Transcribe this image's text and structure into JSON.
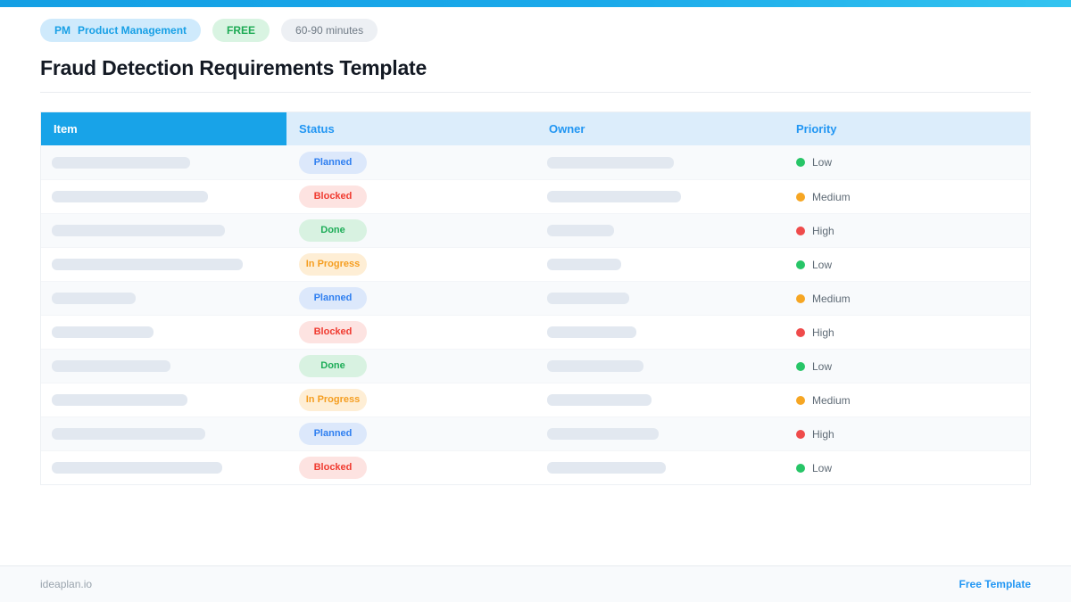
{
  "topbar": {
    "gradient_from": "#149fe4",
    "gradient_to": "#33c4f0"
  },
  "badges": {
    "pm": {
      "prefix": "PM",
      "label": "Product Management",
      "bg": "#cfeafc",
      "color": "#18a0e6"
    },
    "free": {
      "label": "FREE",
      "bg": "#d9f4e2",
      "color": "#1caa53"
    },
    "duration": {
      "label": "60-90 minutes",
      "bg": "#edf0f4",
      "color": "#6f7a85"
    }
  },
  "title": "Fraud Detection Requirements Template",
  "table": {
    "columns": [
      "Item",
      "Status",
      "Owner",
      "Priority"
    ],
    "header_colors": {
      "item_bg": "#18a3e8",
      "item_text": "#ffffff",
      "other_bg": "#dcedfb",
      "other_text": "#2196f3"
    },
    "statuses": {
      "Planned": {
        "bg": "#dce8fb",
        "color": "#2f7ff0"
      },
      "Blocked": {
        "bg": "#fde3e1",
        "color": "#f03b30"
      },
      "Done": {
        "bg": "#d8f2e1",
        "color": "#1ead58"
      },
      "In Progress": {
        "bg": "#feeed5",
        "color": "#f59e21"
      }
    },
    "priorities": {
      "Low": "#27c567",
      "Medium": "#f6a623",
      "High": "#ef4b4b"
    },
    "rows": [
      {
        "status": "Planned",
        "priority": "Low",
        "item_w": 155,
        "owner_w": 142
      },
      {
        "status": "Blocked",
        "priority": "Medium",
        "item_w": 175,
        "owner_w": 150
      },
      {
        "status": "Done",
        "priority": "High",
        "item_w": 194,
        "owner_w": 75
      },
      {
        "status": "In Progress",
        "priority": "Low",
        "item_w": 214,
        "owner_w": 83
      },
      {
        "status": "Planned",
        "priority": "Medium",
        "item_w": 94,
        "owner_w": 92
      },
      {
        "status": "Blocked",
        "priority": "High",
        "item_w": 114,
        "owner_w": 100
      },
      {
        "status": "Done",
        "priority": "Low",
        "item_w": 133,
        "owner_w": 108
      },
      {
        "status": "In Progress",
        "priority": "Medium",
        "item_w": 152,
        "owner_w": 117
      },
      {
        "status": "Planned",
        "priority": "High",
        "item_w": 172,
        "owner_w": 125
      },
      {
        "status": "Blocked",
        "priority": "Low",
        "item_w": 191,
        "owner_w": 133
      }
    ]
  },
  "footer": {
    "left": "ideaplan.io",
    "right": "Free Template",
    "right_color": "#2196f3"
  }
}
